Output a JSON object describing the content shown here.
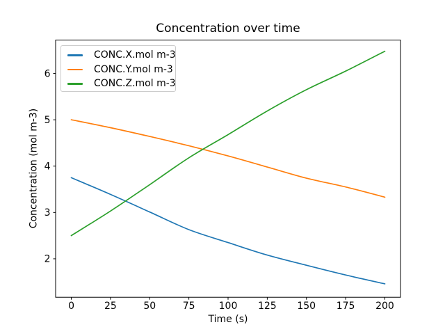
{
  "colors": {
    "background": "#ffffff",
    "axis": "#000000",
    "legend_border": "#cccccc",
    "series_blue": "#1f77b4",
    "series_orange": "#ff7f0e",
    "series_green": "#2ca02c"
  },
  "chart_data": {
    "type": "line",
    "title": "Concentration over time",
    "xlabel": "Time (s)",
    "ylabel": "Concentration (mol m-3)",
    "grid": false,
    "legend_position": "upper left",
    "xlim": [
      -10,
      210
    ],
    "ylim": [
      1.17,
      6.72
    ],
    "x_ticks": [
      0,
      25,
      50,
      75,
      100,
      125,
      150,
      175,
      200
    ],
    "y_ticks": [
      2,
      3,
      4,
      5,
      6
    ],
    "x": [
      0,
      25,
      50,
      75,
      100,
      125,
      150,
      175,
      200
    ],
    "series": [
      {
        "name": "CONC.X.mol m-3",
        "color": "#1f77b4",
        "values": [
          3.75,
          3.39,
          3.01,
          2.63,
          2.35,
          2.08,
          1.86,
          1.65,
          1.46
        ]
      },
      {
        "name": "CONC.Y.mol m-3",
        "color": "#ff7f0e",
        "values": [
          5.0,
          4.83,
          4.64,
          4.44,
          4.22,
          3.98,
          3.74,
          3.55,
          3.33
        ]
      },
      {
        "name": "CONC.Z.mol m-3",
        "color": "#2ca02c",
        "values": [
          2.5,
          3.03,
          3.6,
          4.18,
          4.68,
          5.19,
          5.65,
          6.05,
          6.48
        ]
      }
    ]
  }
}
